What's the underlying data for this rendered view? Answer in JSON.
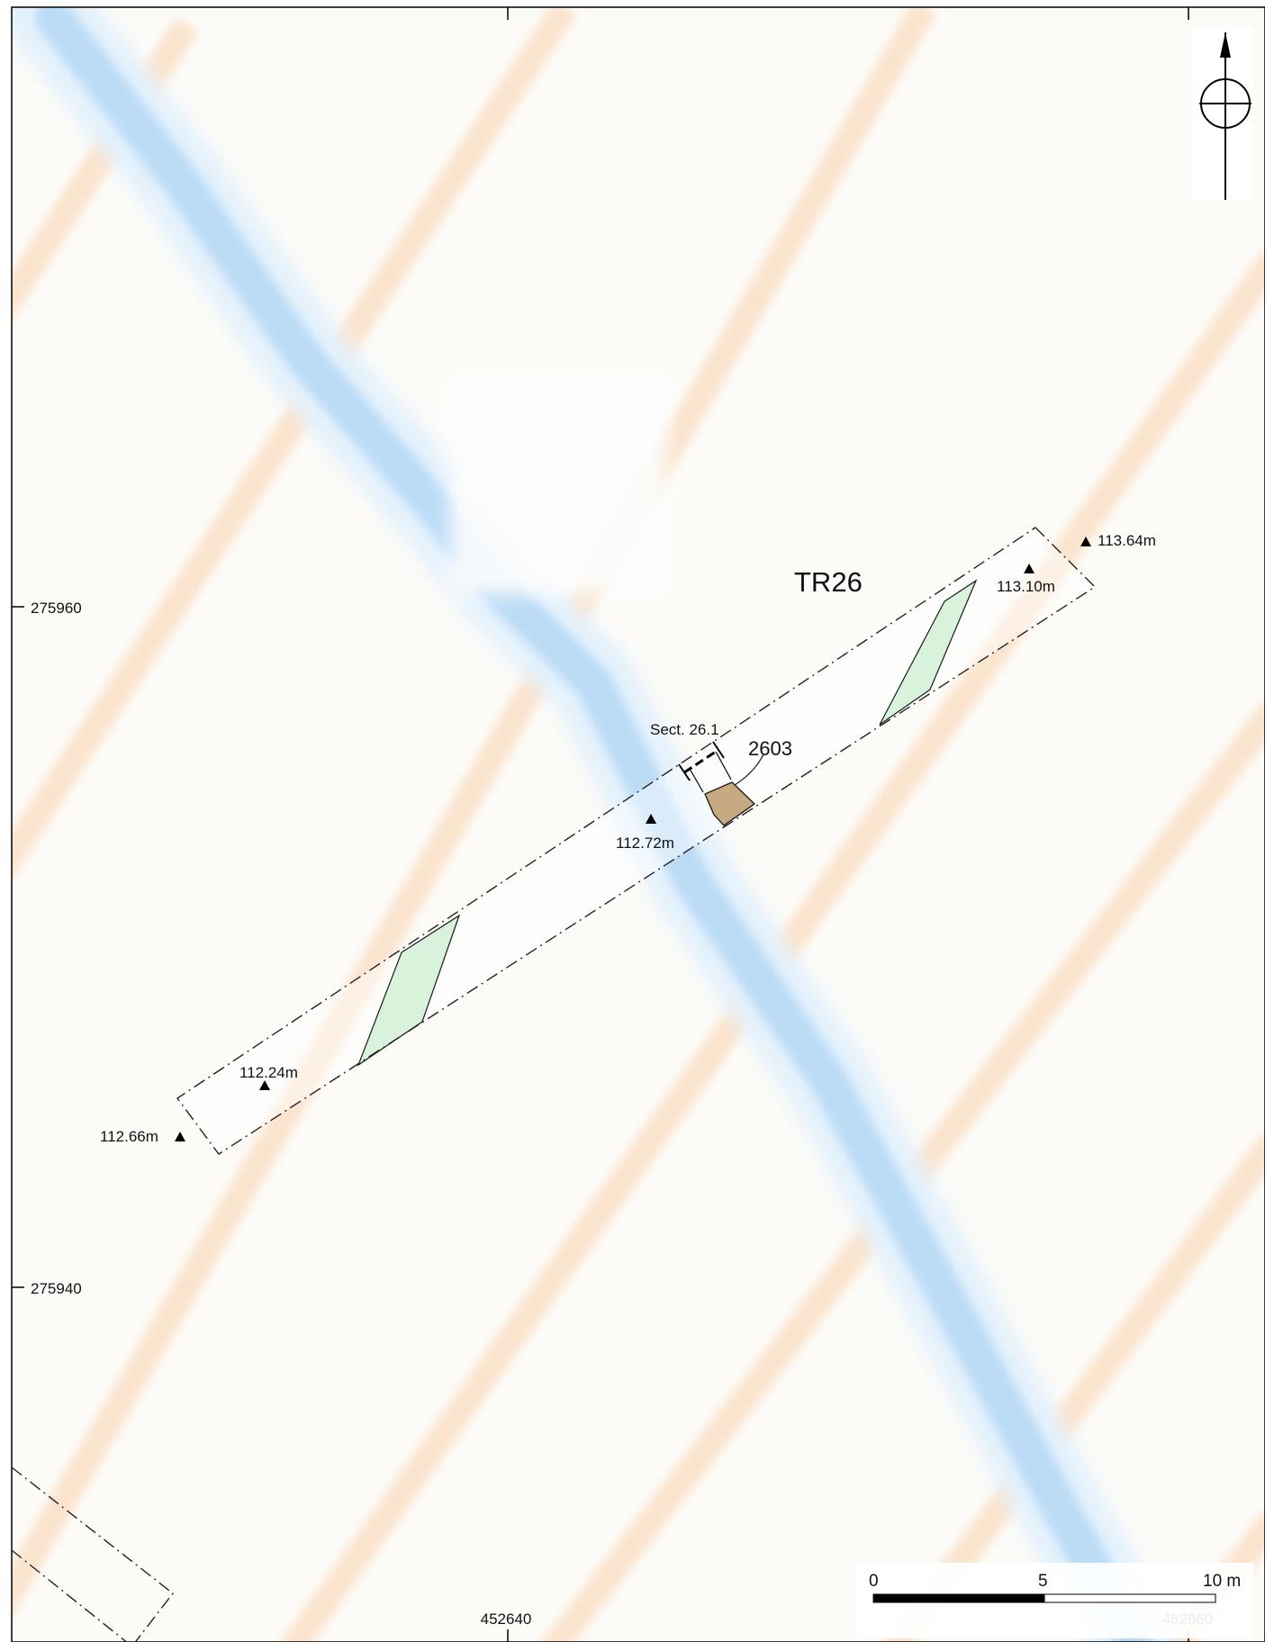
{
  "map": {
    "trench": {
      "label": "TR26"
    },
    "feature": {
      "label": "2603",
      "color": "#c8aa82"
    },
    "section": {
      "label": "Sect. 26.1"
    },
    "spot_heights": [
      {
        "id": "sh-113-64",
        "label": "113.64m"
      },
      {
        "id": "sh-113-10",
        "label": "113.10m"
      },
      {
        "id": "sh-112-72",
        "label": "112.72m"
      },
      {
        "id": "sh-112-24",
        "label": "112.24m"
      },
      {
        "id": "sh-112-66",
        "label": "112.66m"
      }
    ],
    "grid": {
      "northings": [
        "275960",
        "275940"
      ],
      "eastings": [
        "452640",
        "452660"
      ]
    },
    "scale_bar": {
      "ticks": [
        "0",
        "5",
        "10 m"
      ]
    },
    "north_arrow": {
      "icon": "north-arrow-icon"
    },
    "colors": {
      "background": "#fcfbf8",
      "low_relief": "#bcdcf6",
      "high_relief": "#fbe3cc",
      "band": "#d8f2dc"
    }
  }
}
